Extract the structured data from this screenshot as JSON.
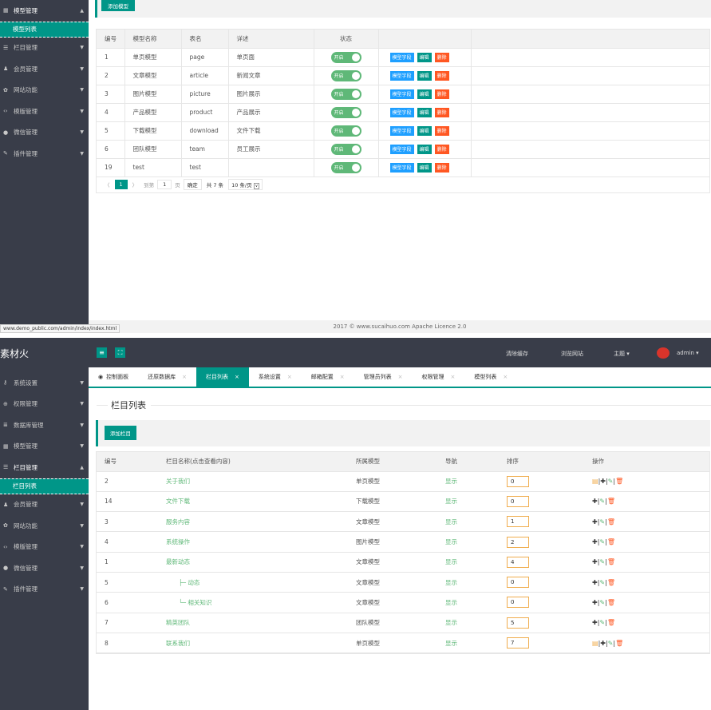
{
  "top": {
    "sidebar": {
      "items": [
        {
          "icon": "grid-icon",
          "label": "模型管理",
          "open": true
        },
        {
          "icon": "list-icon",
          "label": "栏目管理"
        },
        {
          "icon": "user-icon",
          "label": "会员管理"
        },
        {
          "icon": "gear-icon",
          "label": "网站功能"
        },
        {
          "icon": "code-icon",
          "label": "模版管理"
        },
        {
          "icon": "wechat-icon",
          "label": "微信管理"
        },
        {
          "icon": "plug-icon",
          "label": "插件管理"
        }
      ],
      "sub_item": "模型列表"
    },
    "add_button": "添加模型",
    "columns": [
      "编号",
      "模型名称",
      "表名",
      "详述",
      "状态"
    ],
    "rows": [
      {
        "id": "1",
        "name": "单页模型",
        "table": "page",
        "desc": "单页面",
        "status": "开启"
      },
      {
        "id": "2",
        "name": "文章模型",
        "table": "article",
        "desc": "新闻文章",
        "status": "开启"
      },
      {
        "id": "3",
        "name": "图片模型",
        "table": "picture",
        "desc": "图片展示",
        "status": "开启"
      },
      {
        "id": "4",
        "name": "产品模型",
        "table": "product",
        "desc": "产品展示",
        "status": "开启"
      },
      {
        "id": "5",
        "name": "下载模型",
        "table": "download",
        "desc": "文件下载",
        "status": "开启"
      },
      {
        "id": "6",
        "name": "团队模型",
        "table": "team",
        "desc": "员工展示",
        "status": "开启"
      },
      {
        "id": "19",
        "name": "test",
        "table": "test",
        "desc": "",
        "status": "开启"
      }
    ],
    "actions": {
      "fields": "模型字段",
      "edit": "编辑",
      "delete": "删除"
    },
    "pager": {
      "prev": "〈",
      "current": "1",
      "next": "〉",
      "goto": "到第",
      "page_input": "1",
      "page_unit": "页",
      "confirm": "确定",
      "total": "共 7 条",
      "per_page": "10 条/页"
    },
    "footer": "2017 © www.sucaihuo.com Apache Licence 2.0",
    "status_url": "www.demo_public.com/admin/index/index.html"
  },
  "bottom": {
    "logo": "素材火",
    "header": {
      "clear_cache": "清除缓存",
      "browse": "浏览网站",
      "theme": "主题",
      "user": "admin"
    },
    "sidebar": {
      "items": [
        {
          "icon": "key-icon",
          "label": "系统设置"
        },
        {
          "icon": "shield-icon",
          "label": "权限管理"
        },
        {
          "icon": "database-icon",
          "label": "数据库管理"
        },
        {
          "icon": "grid-icon",
          "label": "模型管理"
        },
        {
          "icon": "list-icon",
          "label": "栏目管理",
          "open": true
        },
        {
          "icon": "user-icon",
          "label": "会员管理"
        },
        {
          "icon": "gear-icon",
          "label": "网站功能"
        },
        {
          "icon": "code-icon",
          "label": "模版管理"
        },
        {
          "icon": "wechat-icon",
          "label": "微信管理"
        },
        {
          "icon": "plug-icon",
          "label": "插件管理"
        }
      ],
      "sub_item": "栏目列表"
    },
    "tabs": [
      "控制面板",
      "还原数据库",
      "栏目列表",
      "系统设置",
      "邮箱配置",
      "管理员列表",
      "权限管理",
      "模型列表"
    ],
    "active_tab": "栏目列表",
    "page_title": "栏目列表",
    "add_button": "添加栏目",
    "columns": [
      "编号",
      "栏目名称(点击查看内容)",
      "所属模型",
      "导航",
      "排序",
      "操作"
    ],
    "rows": [
      {
        "id": "2",
        "name": "关于我们",
        "model": "单页模型",
        "nav": "显示",
        "sort": "0",
        "view": true
      },
      {
        "id": "14",
        "name": "文件下载",
        "model": "下载模型",
        "nav": "显示",
        "sort": "0",
        "view": false
      },
      {
        "id": "3",
        "name": "服务内容",
        "model": "文章模型",
        "nav": "显示",
        "sort": "1",
        "view": false
      },
      {
        "id": "4",
        "name": "系统操作",
        "model": "图片模型",
        "nav": "显示",
        "sort": "2",
        "view": false
      },
      {
        "id": "1",
        "name": "最新动态",
        "model": "文章模型",
        "nav": "显示",
        "sort": "4",
        "view": false
      },
      {
        "id": "5",
        "name": "├─ 动态",
        "model": "文章模型",
        "nav": "显示",
        "sort": "0",
        "view": false,
        "indent": true
      },
      {
        "id": "6",
        "name": "└─ 相关知识",
        "model": "文章模型",
        "nav": "显示",
        "sort": "0",
        "view": false,
        "indent": true
      },
      {
        "id": "7",
        "name": "精英团队",
        "model": "团队模型",
        "nav": "显示",
        "sort": "5",
        "view": false
      },
      {
        "id": "8",
        "name": "联系我们",
        "model": "单页模型",
        "nav": "显示",
        "sort": "7",
        "view": true
      }
    ]
  }
}
